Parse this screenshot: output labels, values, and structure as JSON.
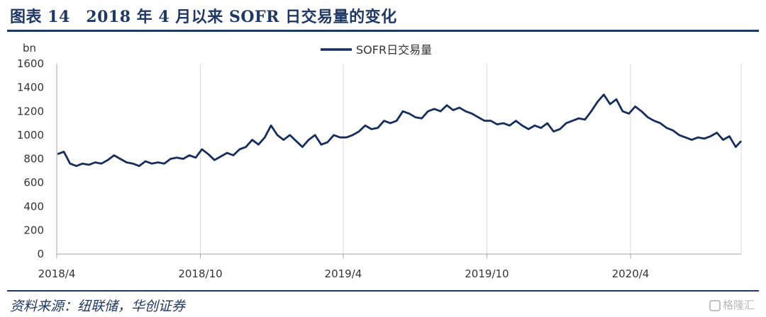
{
  "header": {
    "title": "图表 14　2018 年 4 月以来 SOFR 日交易量的变化"
  },
  "footer": {
    "source": "资料来源：纽联储，华创证券",
    "watermark": "格隆汇"
  },
  "chart_data": {
    "type": "line",
    "ylabel": "bn",
    "ylim": [
      0,
      1600
    ],
    "yticks": [
      0,
      200,
      400,
      600,
      800,
      1000,
      1200,
      1400,
      1600
    ],
    "xlim": [
      "2018-04-01",
      "2020-08-20"
    ],
    "xticks": [
      {
        "date": "2018-04-01",
        "label": "2018/4"
      },
      {
        "date": "2018-10-01",
        "label": "2018/10"
      },
      {
        "date": "2019-04-01",
        "label": "2019/4"
      },
      {
        "date": "2019-10-01",
        "label": "2019/10"
      },
      {
        "date": "2020-04-01",
        "label": "2020/4"
      }
    ],
    "legend": "top-center",
    "grid": "vertical",
    "series": [
      {
        "name": "SOFR日交易量",
        "color": "#162e5c",
        "points": [
          [
            "2018-04-02",
            840
          ],
          [
            "2018-04-10",
            860
          ],
          [
            "2018-04-18",
            760
          ],
          [
            "2018-04-26",
            740
          ],
          [
            "2018-05-04",
            760
          ],
          [
            "2018-05-12",
            750
          ],
          [
            "2018-05-20",
            770
          ],
          [
            "2018-05-28",
            760
          ],
          [
            "2018-06-05",
            790
          ],
          [
            "2018-06-13",
            830
          ],
          [
            "2018-06-21",
            800
          ],
          [
            "2018-06-29",
            770
          ],
          [
            "2018-07-07",
            760
          ],
          [
            "2018-07-15",
            740
          ],
          [
            "2018-07-23",
            780
          ],
          [
            "2018-07-31",
            760
          ],
          [
            "2018-08-08",
            770
          ],
          [
            "2018-08-16",
            760
          ],
          [
            "2018-08-24",
            800
          ],
          [
            "2018-09-01",
            810
          ],
          [
            "2018-09-09",
            800
          ],
          [
            "2018-09-17",
            830
          ],
          [
            "2018-09-25",
            810
          ],
          [
            "2018-10-03",
            880
          ],
          [
            "2018-10-11",
            840
          ],
          [
            "2018-10-19",
            790
          ],
          [
            "2018-10-27",
            820
          ],
          [
            "2018-11-04",
            850
          ],
          [
            "2018-11-12",
            830
          ],
          [
            "2018-11-20",
            880
          ],
          [
            "2018-11-28",
            900
          ],
          [
            "2018-12-06",
            960
          ],
          [
            "2018-12-14",
            920
          ],
          [
            "2018-12-22",
            980
          ],
          [
            "2018-12-30",
            1080
          ],
          [
            "2019-01-07",
            1000
          ],
          [
            "2019-01-15",
            960
          ],
          [
            "2019-01-23",
            1000
          ],
          [
            "2019-01-31",
            950
          ],
          [
            "2019-02-08",
            900
          ],
          [
            "2019-02-16",
            960
          ],
          [
            "2019-02-24",
            1000
          ],
          [
            "2019-03-04",
            920
          ],
          [
            "2019-03-12",
            940
          ],
          [
            "2019-03-20",
            1000
          ],
          [
            "2019-03-28",
            980
          ],
          [
            "2019-04-05",
            980
          ],
          [
            "2019-04-13",
            1000
          ],
          [
            "2019-04-21",
            1030
          ],
          [
            "2019-04-29",
            1080
          ],
          [
            "2019-05-07",
            1050
          ],
          [
            "2019-05-15",
            1060
          ],
          [
            "2019-05-23",
            1120
          ],
          [
            "2019-05-31",
            1100
          ],
          [
            "2019-06-08",
            1120
          ],
          [
            "2019-06-16",
            1200
          ],
          [
            "2019-06-24",
            1180
          ],
          [
            "2019-07-02",
            1150
          ],
          [
            "2019-07-10",
            1140
          ],
          [
            "2019-07-18",
            1200
          ],
          [
            "2019-07-26",
            1220
          ],
          [
            "2019-08-03",
            1200
          ],
          [
            "2019-08-11",
            1250
          ],
          [
            "2019-08-19",
            1210
          ],
          [
            "2019-08-27",
            1230
          ],
          [
            "2019-09-04",
            1200
          ],
          [
            "2019-09-12",
            1180
          ],
          [
            "2019-09-20",
            1150
          ],
          [
            "2019-09-28",
            1120
          ],
          [
            "2019-10-06",
            1120
          ],
          [
            "2019-10-14",
            1090
          ],
          [
            "2019-10-22",
            1100
          ],
          [
            "2019-10-30",
            1080
          ],
          [
            "2019-11-07",
            1120
          ],
          [
            "2019-11-15",
            1080
          ],
          [
            "2019-11-23",
            1050
          ],
          [
            "2019-12-01",
            1080
          ],
          [
            "2019-12-09",
            1060
          ],
          [
            "2019-12-17",
            1100
          ],
          [
            "2019-12-25",
            1030
          ],
          [
            "2020-01-02",
            1050
          ],
          [
            "2020-01-10",
            1100
          ],
          [
            "2020-01-18",
            1120
          ],
          [
            "2020-01-26",
            1140
          ],
          [
            "2020-02-03",
            1130
          ],
          [
            "2020-02-11",
            1200
          ],
          [
            "2020-02-19",
            1280
          ],
          [
            "2020-02-27",
            1340
          ],
          [
            "2020-03-06",
            1260
          ],
          [
            "2020-03-14",
            1300
          ],
          [
            "2020-03-22",
            1200
          ],
          [
            "2020-03-30",
            1180
          ],
          [
            "2020-04-07",
            1240
          ],
          [
            "2020-04-15",
            1200
          ],
          [
            "2020-04-23",
            1150
          ],
          [
            "2020-05-01",
            1120
          ],
          [
            "2020-05-09",
            1100
          ],
          [
            "2020-05-17",
            1060
          ],
          [
            "2020-05-25",
            1040
          ],
          [
            "2020-06-02",
            1000
          ],
          [
            "2020-06-10",
            980
          ],
          [
            "2020-06-18",
            960
          ],
          [
            "2020-06-26",
            980
          ],
          [
            "2020-07-04",
            970
          ],
          [
            "2020-07-12",
            990
          ],
          [
            "2020-07-20",
            1020
          ],
          [
            "2020-07-28",
            960
          ],
          [
            "2020-08-05",
            990
          ],
          [
            "2020-08-13",
            900
          ],
          [
            "2020-08-20",
            950
          ]
        ]
      }
    ]
  }
}
